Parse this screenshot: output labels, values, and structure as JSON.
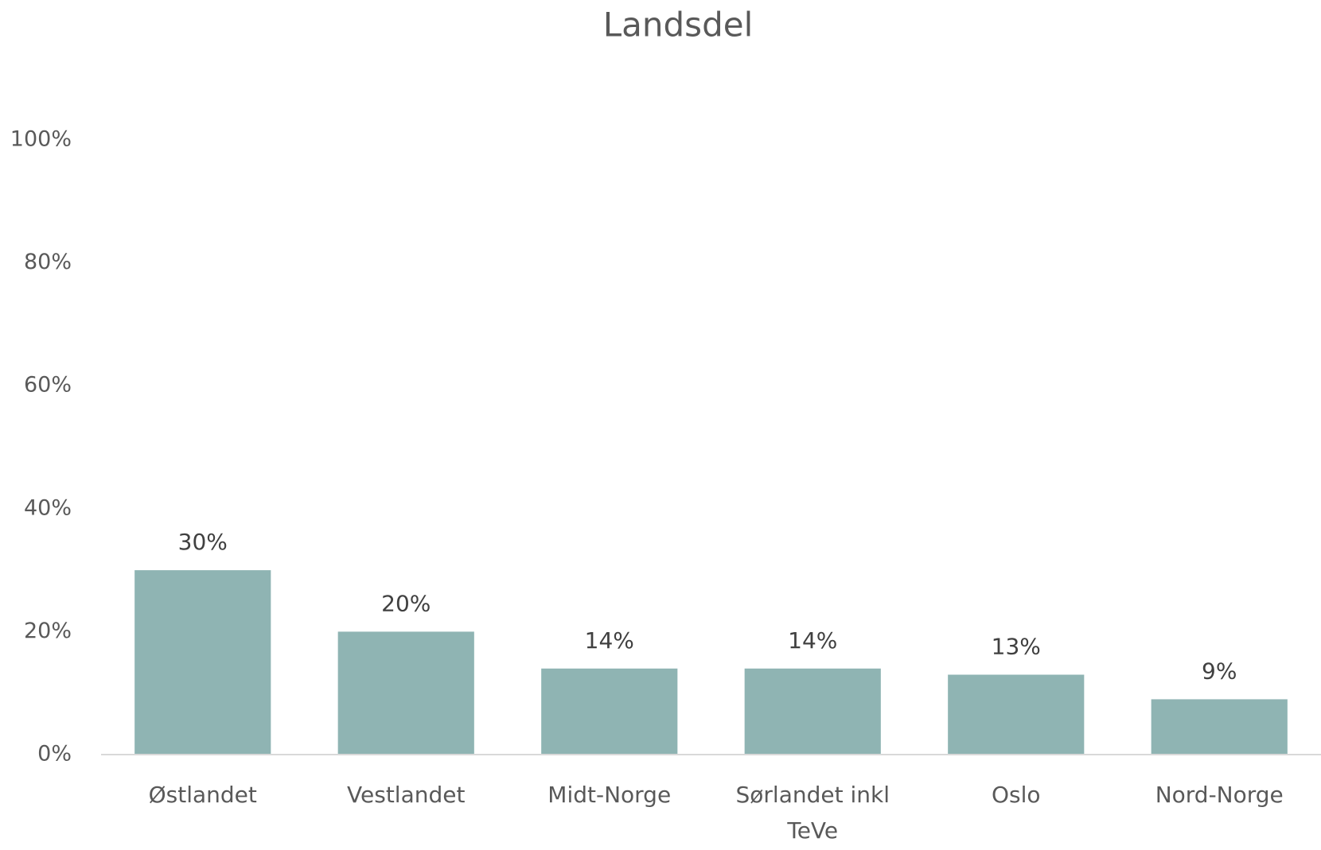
{
  "chart_data": {
    "type": "bar",
    "title": "Landsdel",
    "categories": [
      "Østlandet",
      "Vestlandet",
      "Midt-Norge",
      "Sørlandet inkl TeVe",
      "Oslo",
      "Nord-Norge"
    ],
    "values": [
      30,
      20,
      14,
      14,
      13,
      9
    ],
    "value_labels": [
      "30%",
      "20%",
      "14%",
      "14%",
      "13%",
      "9%"
    ],
    "color": "#8fb4b3",
    "ylim": [
      0,
      100
    ],
    "yticks": [
      {
        "value": 0,
        "label": "0%"
      },
      {
        "value": 20,
        "label": "20%"
      },
      {
        "value": 40,
        "label": "40%"
      },
      {
        "value": 60,
        "label": "60%"
      },
      {
        "value": 80,
        "label": "80%"
      },
      {
        "value": 100,
        "label": "100%"
      }
    ],
    "grid": false
  }
}
